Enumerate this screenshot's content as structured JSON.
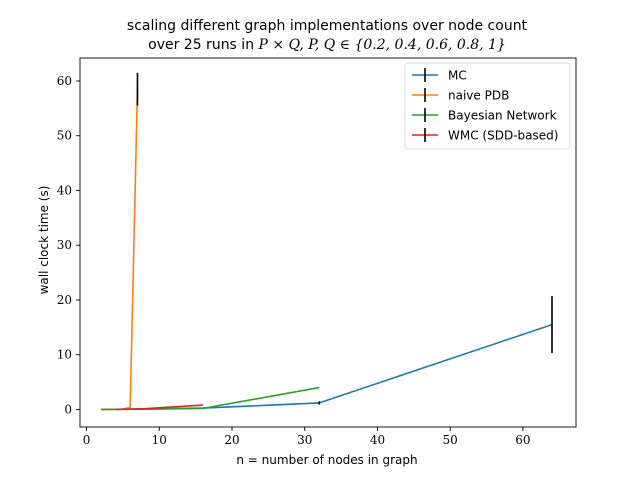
{
  "chart_data": {
    "type": "line",
    "title": "scaling different graph implementations over node count",
    "subtitle_prefix": "over 25 runs in ",
    "subtitle_math": "P × Q, P, Q ∈ {0.2, 0.4, 0.6, 0.8, 1}",
    "xlabel": "n = number of nodes in graph",
    "ylabel": "wall clock time (s)",
    "xlim": [
      -0.9,
      67.3
    ],
    "ylim": [
      -3.2,
      64.2
    ],
    "xticks": [
      0,
      10,
      20,
      30,
      40,
      50,
      60
    ],
    "yticks": [
      0,
      10,
      20,
      30,
      40,
      50,
      60
    ],
    "grid": false,
    "legend_position": "top-right",
    "series": [
      {
        "name": "MC",
        "color": "#1f77b4",
        "x": [
          2,
          4,
          8,
          16,
          32,
          64
        ],
        "y": [
          0.02,
          0.04,
          0.08,
          0.25,
          1.2,
          15.5
        ],
        "err": [
          0,
          0,
          0,
          0.05,
          0.3,
          5.2
        ]
      },
      {
        "name": "naive PDB",
        "color": "#ff7f0e",
        "x": [
          2,
          3,
          4,
          5,
          6,
          7
        ],
        "y": [
          0.01,
          0.01,
          0.02,
          0.05,
          0.4,
          58.5
        ],
        "err": [
          0,
          0,
          0,
          0,
          0,
          3.0
        ]
      },
      {
        "name": "Bayesian Network",
        "color": "#2ca02c",
        "x": [
          2,
          4,
          8,
          16,
          32
        ],
        "y": [
          0.01,
          0.02,
          0.05,
          0.2,
          4.0
        ],
        "err": [
          0,
          0,
          0,
          0,
          0
        ]
      },
      {
        "name": "WMC (SDD-based)",
        "color": "#d62728",
        "x": [
          4,
          8,
          16
        ],
        "y": [
          0.01,
          0.15,
          0.8
        ],
        "err": [
          0,
          0,
          0
        ]
      }
    ]
  }
}
